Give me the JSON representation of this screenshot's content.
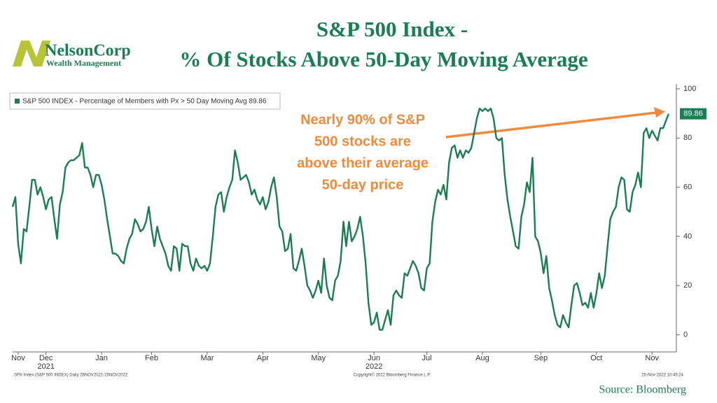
{
  "logo": {
    "name": "NelsonCorp",
    "tagline": "Wealth Management"
  },
  "chart_data": {
    "type": "line",
    "title": [
      "S&P 500 Index -",
      "% Of Stocks Above 50-Day Moving Average"
    ],
    "annotation": [
      "Nearly 90% of S&P",
      "500 stocks are",
      "above their average",
      "50-day price"
    ],
    "source": "Source: Bloomberg",
    "footer": {
      "left": "SPX Index (S&P 500 INDEX)  Daily 26NOV2021-25NOV2022",
      "center": "Copyright© 2022 Bloomberg Finance L.P.",
      "right": "25-Nov-2022 10:45:24"
    },
    "series": [
      {
        "name": "S&P 500 INDEX - Percentage of Members with Px > 50 Day Moving Avg 89.86",
        "color": "#1b7d52",
        "values": [
          52,
          56,
          37,
          29,
          43,
          42,
          52,
          63,
          63,
          57,
          60,
          56,
          51,
          55,
          56,
          47,
          39,
          53,
          58,
          68,
          70,
          71,
          71,
          72,
          73,
          78,
          68,
          68,
          65,
          60,
          65,
          65,
          61,
          55,
          47,
          40,
          33,
          33,
          32,
          30,
          29,
          35,
          39,
          41,
          47,
          45,
          42,
          43,
          46,
          52,
          43,
          36,
          44,
          39,
          36,
          33,
          28,
          26,
          36,
          35,
          26,
          37,
          36,
          36,
          29,
          26,
          31,
          28,
          27,
          28,
          26,
          29,
          40,
          52,
          57,
          58,
          50,
          56,
          60,
          63,
          75,
          70,
          63,
          64,
          65,
          62,
          57,
          59,
          55,
          53,
          56,
          51,
          54,
          60,
          64,
          56,
          44,
          42,
          34,
          35,
          41,
          27,
          26,
          30,
          35,
          28,
          20,
          18,
          15,
          18,
          22,
          17,
          31,
          20,
          15,
          14,
          22,
          24,
          30,
          46,
          36,
          46,
          38,
          40,
          43,
          48,
          40,
          29,
          13,
          4,
          5,
          9,
          2,
          2,
          6,
          10,
          4,
          16,
          18,
          16,
          15,
          25,
          24,
          27,
          30,
          28,
          25,
          19,
          18,
          27,
          29,
          46,
          54,
          59,
          57,
          61,
          55,
          70,
          76,
          77,
          72,
          75,
          72,
          75,
          74,
          76,
          82,
          88,
          92,
          91,
          92,
          91,
          92,
          88,
          80,
          79,
          80,
          65,
          55,
          48,
          42,
          36,
          35,
          48,
          53,
          62,
          58,
          72,
          40,
          38,
          33,
          25,
          32,
          19,
          14,
          8,
          4,
          3,
          8,
          5,
          3,
          12,
          20,
          21,
          17,
          12,
          13,
          11,
          17,
          11,
          17,
          25,
          19,
          24,
          36,
          47,
          50,
          52,
          60,
          64,
          63,
          51,
          50,
          58,
          61,
          66,
          60,
          82,
          84,
          80,
          83,
          81,
          79,
          84,
          84,
          87,
          89.86
        ]
      }
    ],
    "xlim": [
      0,
      236
    ],
    "xticks": [
      {
        "value": 2,
        "label": "Nov"
      },
      {
        "value": 12,
        "label": "Dec"
      },
      {
        "value": 32,
        "label": "Jan"
      },
      {
        "value": 50,
        "label": "Feb"
      },
      {
        "value": 70,
        "label": "Mar"
      },
      {
        "value": 90,
        "label": "Apr"
      },
      {
        "value": 110,
        "label": "May"
      },
      {
        "value": 130,
        "label": "Jun"
      },
      {
        "value": 149,
        "label": "Jul"
      },
      {
        "value": 169,
        "label": "Aug"
      },
      {
        "value": 190,
        "label": "Sep"
      },
      {
        "value": 210,
        "label": "Oct"
      },
      {
        "value": 230,
        "label": "Nov"
      }
    ],
    "year_ticks": [
      {
        "value": 12,
        "label": "2021"
      },
      {
        "value": 130,
        "label": "2022"
      }
    ],
    "ylim": [
      -7,
      102
    ],
    "yticks": [
      0,
      20,
      40,
      60,
      80,
      100
    ]
  }
}
